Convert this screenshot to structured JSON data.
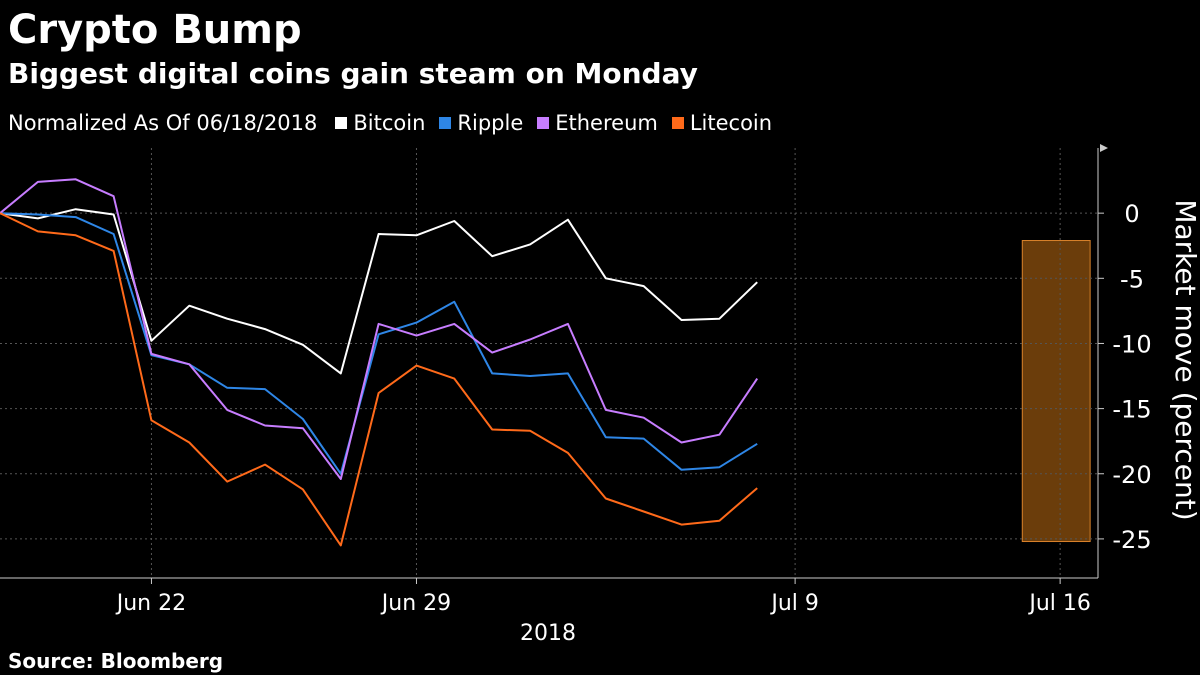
{
  "title": "Crypto Bump",
  "subtitle": "Biggest digital coins gain steam on Monday",
  "legend_note": "Normalized As Of 06/18/2018",
  "source": "Source: Bloomberg",
  "colors": {
    "background": "#000000",
    "grid": "#555555",
    "axis": "#cccccc",
    "highlight_fill": "#6b3d0b",
    "highlight_stroke": "#d9822b"
  },
  "chart_data": {
    "type": "line",
    "x": [
      "2018-06-18",
      "2018-06-19",
      "2018-06-20",
      "2018-06-21",
      "2018-06-22",
      "2018-06-23",
      "2018-06-24",
      "2018-06-25",
      "2018-06-26",
      "2018-06-27",
      "2018-06-28",
      "2018-06-29",
      "2018-06-30",
      "2018-07-01",
      "2018-07-02",
      "2018-07-03",
      "2018-07-04",
      "2018-07-05",
      "2018-07-06",
      "2018-07-07",
      "2018-07-08",
      "2018-07-09",
      "2018-07-10",
      "2018-07-11",
      "2018-07-12",
      "2018-07-13",
      "2018-07-14",
      "2018-07-15",
      "2018-07-16"
    ],
    "xlim": [
      "2018-06-18",
      "2018-07-17"
    ],
    "x_ticks": [
      {
        "date": "2018-06-22",
        "label": "Jun 22"
      },
      {
        "date": "2018-06-29",
        "label": "Jun 29"
      },
      {
        "date": "2018-07-09",
        "label": "Jul 9"
      },
      {
        "date": "2018-07-16",
        "label": "Jul 16"
      }
    ],
    "x_year_label": "2018",
    "ylabel": "Market move (percent)",
    "ylim": [
      -28,
      5
    ],
    "y_ticks": [
      0,
      -5,
      -10,
      -15,
      -20,
      -25
    ],
    "y_tick_labels": [
      "0",
      "-5",
      "-10",
      "-15",
      "-20",
      "-25"
    ],
    "grid": true,
    "highlight": {
      "from": "2018-07-15",
      "to": "2018-07-16",
      "ylim": [
        -25.2,
        -2.1
      ]
    },
    "series": [
      {
        "name": "Bitcoin",
        "color": "#ffffff",
        "points": [
          [
            "2018-06-18",
            0
          ],
          [
            "2018-06-19",
            -0.4
          ],
          [
            "2018-06-20",
            0.3
          ],
          [
            "2018-06-21",
            -0.1
          ],
          [
            "2018-06-22",
            -9.8
          ],
          [
            "2018-06-23",
            -7.1
          ],
          [
            "2018-06-24",
            -8.1
          ],
          [
            "2018-06-25",
            -8.9
          ],
          [
            "2018-06-26",
            -10.1
          ],
          [
            "2018-06-27",
            -12.3
          ],
          [
            "2018-06-28",
            -1.6
          ],
          [
            "2018-06-29",
            -1.7
          ],
          [
            "2018-06-30",
            -0.6
          ],
          [
            "2018-07-01",
            -3.3
          ],
          [
            "2018-07-02",
            -2.4
          ],
          [
            "2018-07-03",
            -0.5
          ],
          [
            "2018-07-04",
            -5.0
          ],
          [
            "2018-07-05",
            -5.6
          ],
          [
            "2018-07-06",
            -8.2
          ],
          [
            "2018-07-07",
            -8.1
          ],
          [
            "2018-07-08",
            -5.3
          ]
        ]
      },
      {
        "name": "Ripple",
        "color": "#2e86e6",
        "points": [
          [
            "2018-06-18",
            0
          ],
          [
            "2018-06-19",
            -0.1
          ],
          [
            "2018-06-20",
            -0.3
          ],
          [
            "2018-06-21",
            -1.6
          ],
          [
            "2018-06-22",
            -10.9
          ],
          [
            "2018-06-23",
            -11.6
          ],
          [
            "2018-06-24",
            -13.4
          ],
          [
            "2018-06-25",
            -13.5
          ],
          [
            "2018-06-26",
            -15.8
          ],
          [
            "2018-06-27",
            -20.0
          ],
          [
            "2018-06-28",
            -9.3
          ],
          [
            "2018-06-29",
            -8.4
          ],
          [
            "2018-06-30",
            -6.8
          ],
          [
            "2018-07-01",
            -12.3
          ],
          [
            "2018-07-02",
            -12.5
          ],
          [
            "2018-07-03",
            -12.3
          ],
          [
            "2018-07-04",
            -17.2
          ],
          [
            "2018-07-05",
            -17.3
          ],
          [
            "2018-07-06",
            -19.7
          ],
          [
            "2018-07-07",
            -19.5
          ],
          [
            "2018-07-08",
            -17.7
          ]
        ]
      },
      {
        "name": "Ethereum",
        "color": "#c77dff",
        "points": [
          [
            "2018-06-18",
            0
          ],
          [
            "2018-06-19",
            2.4
          ],
          [
            "2018-06-20",
            2.6
          ],
          [
            "2018-06-21",
            1.3
          ],
          [
            "2018-06-22",
            -10.8
          ],
          [
            "2018-06-23",
            -11.6
          ],
          [
            "2018-06-24",
            -15.1
          ],
          [
            "2018-06-25",
            -16.3
          ],
          [
            "2018-06-26",
            -16.5
          ],
          [
            "2018-06-27",
            -20.4
          ],
          [
            "2018-06-28",
            -8.5
          ],
          [
            "2018-06-29",
            -9.4
          ],
          [
            "2018-06-30",
            -8.5
          ],
          [
            "2018-07-01",
            -10.7
          ],
          [
            "2018-07-02",
            -9.7
          ],
          [
            "2018-07-03",
            -8.5
          ],
          [
            "2018-07-04",
            -15.1
          ],
          [
            "2018-07-05",
            -15.7
          ],
          [
            "2018-07-06",
            -17.6
          ],
          [
            "2018-07-07",
            -17.0
          ],
          [
            "2018-07-08",
            -12.7
          ]
        ]
      },
      {
        "name": "Litecoin",
        "color": "#ff6a1a",
        "points": [
          [
            "2018-06-18",
            0
          ],
          [
            "2018-06-19",
            -1.4
          ],
          [
            "2018-06-20",
            -1.7
          ],
          [
            "2018-06-21",
            -2.9
          ],
          [
            "2018-06-22",
            -15.9
          ],
          [
            "2018-06-23",
            -17.6
          ],
          [
            "2018-06-24",
            -20.6
          ],
          [
            "2018-06-25",
            -19.3
          ],
          [
            "2018-06-26",
            -21.2
          ],
          [
            "2018-06-27",
            -25.5
          ],
          [
            "2018-06-28",
            -13.8
          ],
          [
            "2018-06-29",
            -11.7
          ],
          [
            "2018-06-30",
            -12.7
          ],
          [
            "2018-07-01",
            -16.6
          ],
          [
            "2018-07-02",
            -16.7
          ],
          [
            "2018-07-03",
            -18.4
          ],
          [
            "2018-07-04",
            -21.9
          ],
          [
            "2018-07-05",
            -22.9
          ],
          [
            "2018-07-06",
            -23.9
          ],
          [
            "2018-07-07",
            -23.6
          ],
          [
            "2018-07-08",
            -21.1
          ]
        ]
      }
    ]
  }
}
